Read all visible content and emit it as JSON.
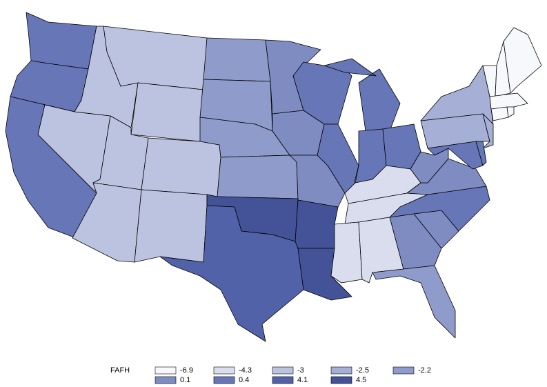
{
  "legend": {
    "title": "FAFH",
    "values": [
      -6.9,
      -4.3,
      -3,
      -2.5,
      -2.2,
      0.1,
      0.4,
      4.1,
      4.5
    ],
    "colors": [
      "#f7f8fc",
      "#d9ddee",
      "#bcc3e0",
      "#a6b0d6",
      "#8f9bcb",
      "#7e8cc2",
      "#6676b6",
      "#5262a8",
      "#445398"
    ]
  },
  "regions": [
    0.4,
    0.4,
    0.4,
    -3,
    -3,
    -3,
    -3,
    -3,
    -3,
    -3,
    -3,
    -2.2,
    -2.2,
    -2.2,
    -2.2,
    4.5,
    4.1,
    0.1,
    0.1,
    0.1,
    4.5,
    4.5,
    0.4,
    0.4,
    0.4,
    0.4,
    0.4,
    -4.3,
    -4.3,
    -4.3,
    -4.3,
    0.1,
    -2.2,
    0.1,
    0.4,
    0.1,
    0.1,
    -2.5,
    -2.5,
    -2.5,
    0.4,
    0.4,
    -6.9,
    -6.9,
    -6.9,
    -6.9,
    -6.9,
    -6.9
  ]
}
